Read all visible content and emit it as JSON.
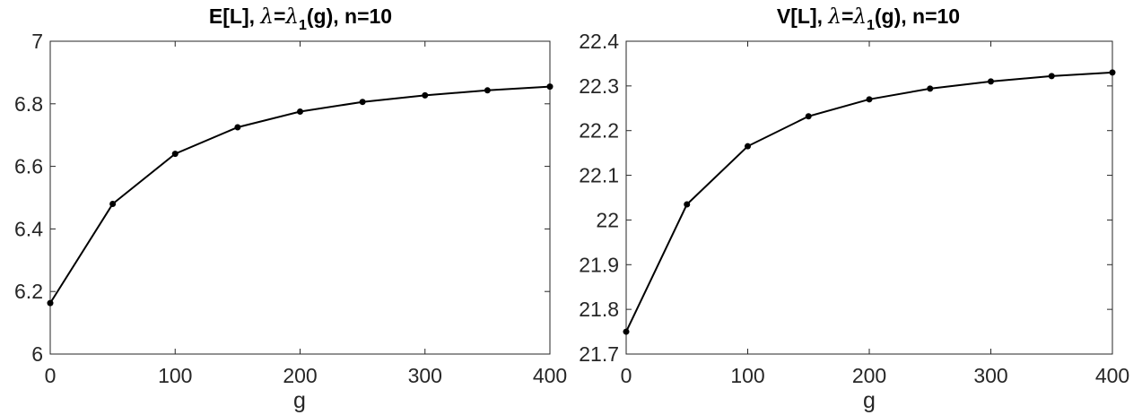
{
  "chart_data": [
    {
      "type": "line",
      "title": "E[L], λ=λ1(g), n=10",
      "title_parts": {
        "pre": "E[L], ",
        "sym1": "λ",
        "eq": "=",
        "sym2": "λ",
        "sub": "1",
        "post": "(g), n=10"
      },
      "xlabel": "g",
      "ylabel": "",
      "xlim": [
        0,
        400
      ],
      "ylim": [
        6,
        7
      ],
      "xticks": [
        0,
        100,
        200,
        300,
        400
      ],
      "yticks": [
        6,
        6.2,
        6.4,
        6.6,
        6.8,
        7
      ],
      "ytick_labels": [
        "6",
        "6.2",
        "6.4",
        "6.6",
        "6.8",
        "7"
      ],
      "grid": false,
      "series": [
        {
          "x": [
            0,
            50,
            100,
            150,
            200,
            250,
            300,
            350,
            400
          ],
          "y": [
            6.163,
            6.48,
            6.64,
            6.725,
            6.775,
            6.806,
            6.827,
            6.843,
            6.855
          ],
          "color": "#000000",
          "marker": "dot"
        }
      ]
    },
    {
      "type": "line",
      "title": "V[L], λ=λ1(g), n=10",
      "title_parts": {
        "pre": "V[L], ",
        "sym1": "λ",
        "eq": "=",
        "sym2": "λ",
        "sub": "1",
        "post": "(g), n=10"
      },
      "xlabel": "g",
      "ylabel": "",
      "xlim": [
        0,
        400
      ],
      "ylim": [
        21.7,
        22.4
      ],
      "xticks": [
        0,
        100,
        200,
        300,
        400
      ],
      "yticks": [
        21.7,
        21.8,
        21.9,
        22,
        22.1,
        22.2,
        22.3,
        22.4
      ],
      "ytick_labels": [
        "21.7",
        "21.8",
        "21.9",
        "22",
        "22.1",
        "22.2",
        "22.3",
        "22.4"
      ],
      "grid": false,
      "series": [
        {
          "x": [
            0,
            50,
            100,
            150,
            200,
            250,
            300,
            350,
            400
          ],
          "y": [
            21.75,
            22.035,
            22.165,
            22.232,
            22.27,
            22.294,
            22.31,
            22.322,
            22.33
          ],
          "color": "#000000",
          "marker": "dot"
        }
      ]
    }
  ]
}
